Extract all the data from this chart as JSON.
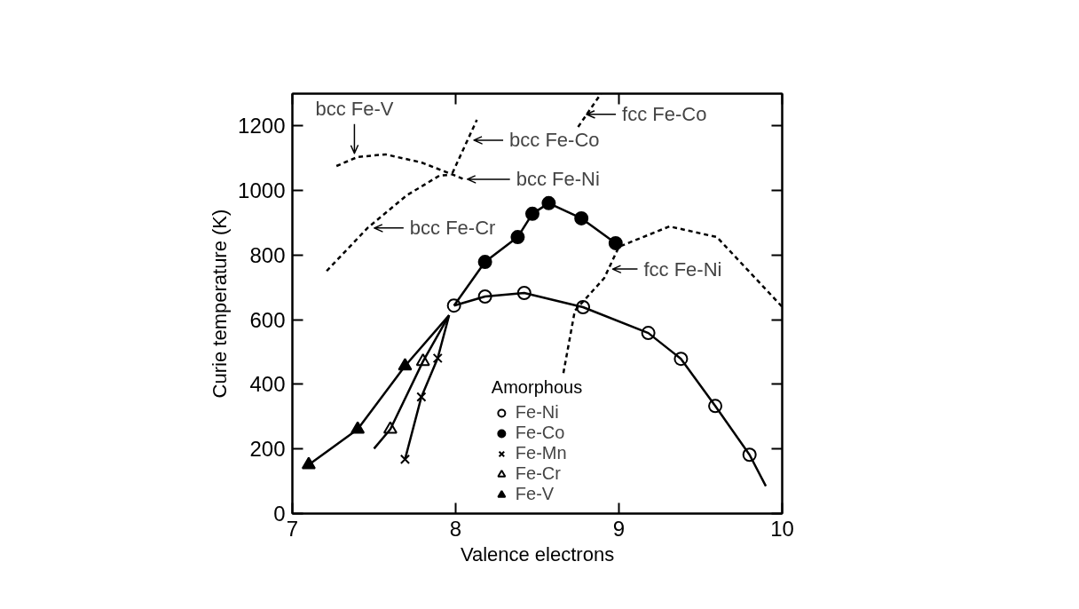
{
  "chart_data": {
    "type": "line",
    "xlabel": "Valence electrons",
    "ylabel": "Curie temperature (K)",
    "legend_title": "Amorphous",
    "legend": "bottom center",
    "xlim": [
      7,
      10
    ],
    "ylim": [
      0,
      1300
    ],
    "xticks": [
      7,
      8,
      9,
      10
    ],
    "yticks": [
      0,
      200,
      400,
      600,
      800,
      1000,
      1200
    ],
    "series": [
      {
        "name": "Fe-Ni",
        "type": "scatter",
        "marker": "circle",
        "color": "#ffffff",
        "x": [
          7.99,
          8.18,
          8.42,
          8.78,
          9.18,
          9.38,
          9.59,
          9.8
        ],
        "values": [
          644,
          672,
          683,
          639,
          559,
          479,
          333,
          182
        ]
      },
      {
        "name": "Fe-Co",
        "type": "scatter",
        "marker": "circle",
        "color": "#000000",
        "x": [
          8.18,
          8.38,
          8.47,
          8.57,
          8.77,
          8.98
        ],
        "values": [
          779,
          856,
          928,
          961,
          914,
          837
        ]
      },
      {
        "name": "Fe-Mn",
        "type": "scatter",
        "marker": "cross",
        "color": "#000000",
        "x": [
          7.69,
          7.79,
          7.89
        ],
        "values": [
          168,
          361,
          481
        ]
      },
      {
        "name": "Fe-Cr",
        "type": "scatter",
        "marker": "triangle",
        "color": "#ffffff",
        "x": [
          7.6,
          7.8
        ],
        "values": [
          261,
          471
        ]
      },
      {
        "name": "Fe-V",
        "type": "scatter",
        "marker": "triangle",
        "color": "#000000",
        "x": [
          7.1,
          7.4,
          7.69
        ],
        "values": [
          151,
          261,
          457
        ]
      },
      {
        "line_style": "solid",
        "color": "#000000",
        "x": [
          7.99,
          8.18,
          8.42,
          8.78,
          9.18,
          9.38,
          9.59,
          9.8,
          9.9
        ],
        "values": [
          644,
          672,
          683,
          639,
          559,
          479,
          333,
          182,
          85
        ]
      },
      {
        "line_style": "solid",
        "color": "#000000",
        "x": [
          7.99,
          8.18,
          8.38,
          8.47,
          8.57,
          8.77,
          8.98
        ],
        "values": [
          644,
          779,
          856,
          928,
          961,
          914,
          837
        ]
      },
      {
        "line_style": "solid",
        "color": "#000000",
        "x": [
          7.69,
          7.79,
          7.89,
          7.96
        ],
        "values": [
          168,
          361,
          481,
          614
        ]
      },
      {
        "line_style": "solid",
        "color": "#000000",
        "x": [
          7.5,
          7.6,
          7.8,
          7.96
        ],
        "values": [
          201,
          261,
          471,
          614
        ]
      },
      {
        "line_style": "solid",
        "color": "#000000",
        "x": [
          7.1,
          7.4,
          7.69,
          7.96
        ],
        "values": [
          151,
          261,
          457,
          614
        ]
      },
      {
        "line_style": "dashed",
        "color": "#000000",
        "x": [
          7.27,
          7.4,
          7.57,
          7.79,
          8.0,
          8.05
        ],
        "values": [
          1076,
          1104,
          1112,
          1087,
          1046,
          1035
        ]
      },
      {
        "line_style": "dashed",
        "color": "#000000",
        "x": [
          7.21,
          7.46,
          7.7,
          7.9,
          7.97
        ],
        "values": [
          751,
          884,
          985,
          1046,
          1049
        ]
      },
      {
        "line_style": "dashed",
        "color": "#000000",
        "x": [
          7.98,
          8.13
        ],
        "values": [
          1054,
          1219
        ]
      },
      {
        "line_style": "dashed",
        "color": "#000000",
        "x": [
          8.75,
          8.89
        ],
        "values": [
          1197,
          1300
        ]
      },
      {
        "line_style": "dashed",
        "color": "#000000",
        "x": [
          8.66,
          8.73,
          8.91,
          9.0,
          9.31,
          9.6,
          10.0
        ],
        "values": [
          435,
          628,
          729,
          826,
          889,
          856,
          640
        ]
      }
    ],
    "annotations": [
      {
        "text": "bcc Fe-V",
        "x": 7.38,
        "y": 1104
      },
      {
        "text": "bcc Fe-Cr",
        "x": 7.48,
        "y": 884
      },
      {
        "text": "bcc Fe-Co",
        "x": 8.09,
        "y": 1156
      },
      {
        "text": "bcc Fe-Ni",
        "x": 8.05,
        "y": 1035
      },
      {
        "text": "fcc Fe-Co",
        "x": 8.78,
        "y": 1236
      },
      {
        "text": "fcc Fe-Ni",
        "x": 8.94,
        "y": 757
      }
    ]
  }
}
